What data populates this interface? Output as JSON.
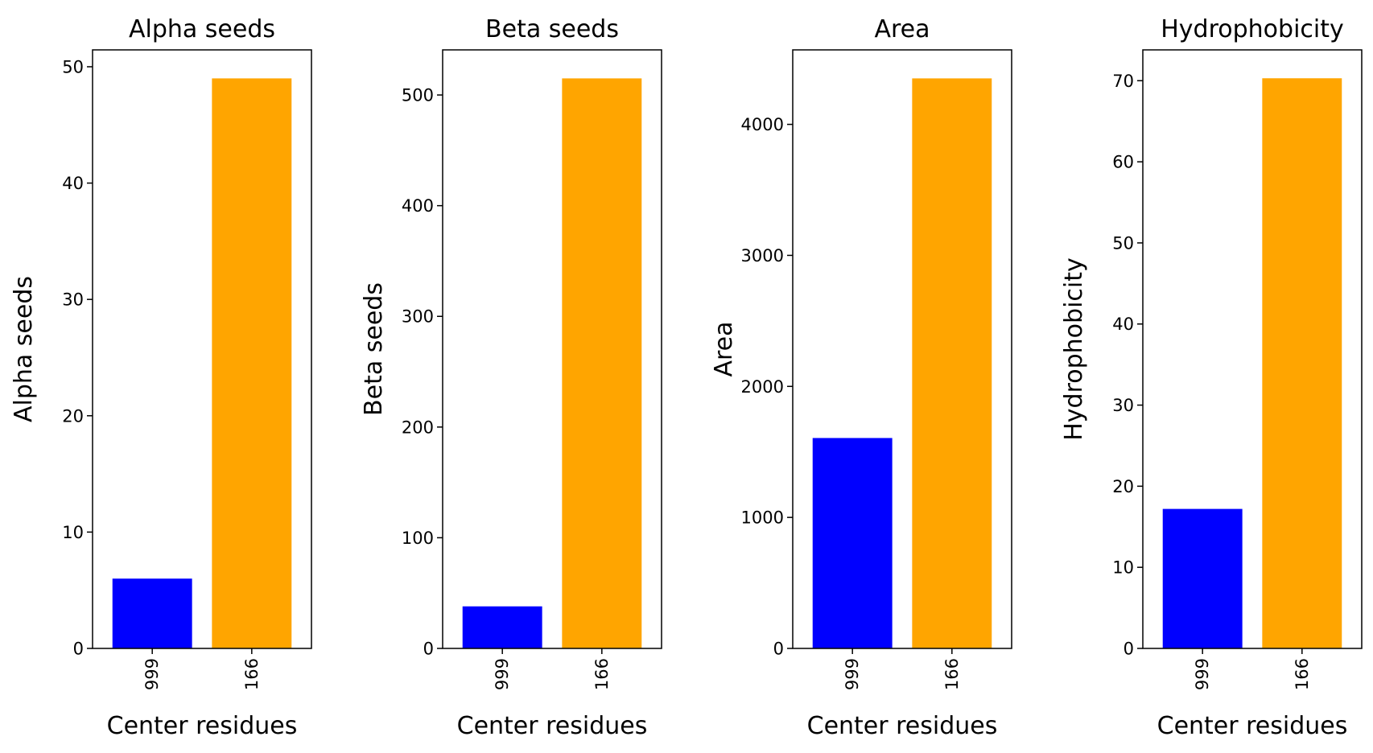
{
  "chart_data": [
    {
      "type": "bar",
      "title": "Alpha seeds",
      "xlabel": "Center residues",
      "ylabel": "Alpha seeds",
      "categories": [
        "999",
        "166"
      ],
      "values": [
        6,
        49
      ],
      "colors": [
        "#0000ff",
        "#ffa500"
      ],
      "ylim": [
        0,
        51.45
      ],
      "yticks": [
        0,
        10,
        20,
        30,
        40,
        50
      ]
    },
    {
      "type": "bar",
      "title": "Beta seeds",
      "xlabel": "Center residues",
      "ylabel": "Beta seeds",
      "categories": [
        "999",
        "166"
      ],
      "values": [
        38,
        515
      ],
      "colors": [
        "#0000ff",
        "#ffa500"
      ],
      "ylim": [
        0,
        540.75
      ],
      "yticks": [
        0,
        100,
        200,
        300,
        400,
        500
      ]
    },
    {
      "type": "bar",
      "title": "Area",
      "xlabel": "Center residues",
      "ylabel": "Area",
      "categories": [
        "999",
        "166"
      ],
      "values": [
        1606,
        4351
      ],
      "colors": [
        "#0000ff",
        "#ffa500"
      ],
      "ylim": [
        0,
        4568.55
      ],
      "yticks": [
        0,
        1000,
        2000,
        3000,
        4000
      ]
    },
    {
      "type": "bar",
      "title": "Hydrophobicity",
      "xlabel": "Center residues",
      "ylabel": "Hydrophobicity",
      "categories": [
        "999",
        "166"
      ],
      "values": [
        17.2,
        70.3
      ],
      "colors": [
        "#0000ff",
        "#ffa500"
      ],
      "ylim": [
        0,
        73.8
      ],
      "yticks": [
        0,
        10,
        20,
        30,
        40,
        50,
        60,
        70
      ]
    }
  ]
}
